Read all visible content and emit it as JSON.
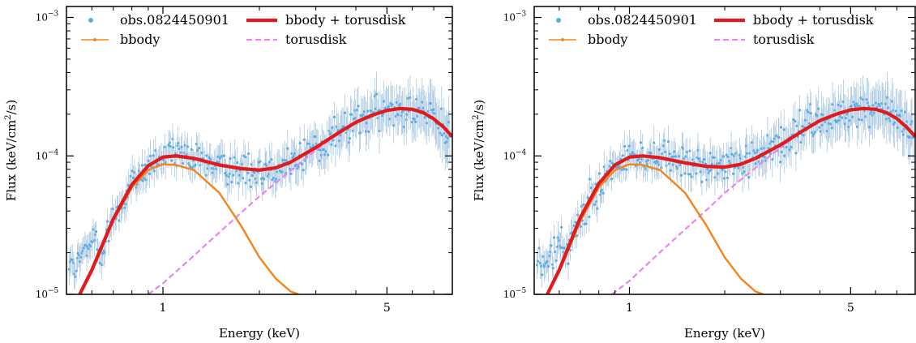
{
  "chart_data": [
    {
      "type": "scatter",
      "xlabel": "Energy (keV)",
      "ylabel_main": "Flux (keV/cm",
      "ylabel_sup": "2",
      "ylabel_end": "/s)",
      "xscale": "log",
      "yscale": "log",
      "xlim": [
        0.5,
        8.0
      ],
      "ylim": [
        1e-05,
        0.0012
      ],
      "x_ticks": [
        {
          "value": 1,
          "label": "1"
        },
        {
          "value": 5,
          "label": "5"
        }
      ],
      "y_ticks": [
        {
          "value": 1e-05,
          "base": "10",
          "exp": "−5"
        },
        {
          "value": 0.0001,
          "base": "10",
          "exp": "−4"
        },
        {
          "value": 0.001,
          "base": "10",
          "exp": "−3"
        }
      ],
      "legend_position": "top",
      "legend": [
        {
          "label": "obs.0824450901",
          "kind": "points",
          "color": "#5DADE2"
        },
        {
          "label": "bbody + torusdisk",
          "kind": "thick-line",
          "color": "#E31A1C"
        },
        {
          "label": "bbody",
          "kind": "line-marker",
          "color": "#F58518"
        },
        {
          "label": "torusdisk",
          "kind": "dashed-line",
          "color": "#EE82EE"
        }
      ],
      "series": [
        {
          "name": "bbody + torusdisk",
          "color": "#E31A1C",
          "x": [
            0.55,
            0.6,
            0.7,
            0.8,
            0.9,
            1.0,
            1.1,
            1.25,
            1.5,
            1.75,
            2.0,
            2.25,
            2.5,
            3.0,
            3.5,
            4.0,
            4.5,
            5.0,
            5.5,
            6.0,
            6.5,
            7.0,
            7.5,
            8.0
          ],
          "y": [
            1e-05,
            1.5e-05,
            3.5e-05,
            6.2e-05,
            8.5e-05,
            9.8e-05,
            0.0001,
            9.6e-05,
            8.6e-05,
            8.1e-05,
            7.9e-05,
            8.2e-05,
            9e-05,
            0.000115,
            0.000145,
            0.000175,
            0.000197,
            0.000213,
            0.00022,
            0.000217,
            0.000205,
            0.000185,
            0.000162,
            0.000138
          ]
        },
        {
          "name": "bbody",
          "color": "#F58518",
          "x": [
            0.55,
            0.6,
            0.7,
            0.8,
            0.9,
            1.0,
            1.1,
            1.25,
            1.5,
            1.75,
            2.0,
            2.25,
            2.5,
            2.65
          ],
          "y": [
            1e-05,
            1.45e-05,
            3.4e-05,
            5.9e-05,
            7.9e-05,
            8.7e-05,
            8.6e-05,
            7.9e-05,
            5.4e-05,
            3.15e-05,
            1.85e-05,
            1.3e-05,
            1.05e-05,
            1e-05
          ]
        },
        {
          "name": "torusdisk",
          "color": "#EE82EE",
          "x": [
            0.9,
            1.0,
            1.2,
            1.5,
            1.8,
            2.0,
            2.5,
            3.0,
            3.5,
            4.0,
            4.5,
            5.0
          ],
          "y": [
            1e-05,
            1.2e-05,
            1.75e-05,
            2.8e-05,
            4.1e-05,
            5.1e-05,
            7.8e-05,
            0.00011,
            0.000142,
            0.000172,
            0.000195,
            0.00021
          ]
        },
        {
          "name": "obs.0824450901",
          "color": "#5DADE2",
          "x_range": [
            0.51,
            7.9
          ],
          "count": 400
        }
      ]
    },
    {
      "type": "scatter",
      "xlabel": "Energy (keV)",
      "ylabel_main": "Flux (keV/cm",
      "ylabel_sup": "2",
      "ylabel_end": "/s)",
      "xscale": "log",
      "yscale": "log",
      "xlim": [
        0.5,
        8.0
      ],
      "ylim": [
        1e-05,
        0.0012
      ],
      "x_ticks": [
        {
          "value": 1,
          "label": "1"
        },
        {
          "value": 5,
          "label": "5"
        }
      ],
      "y_ticks": [
        {
          "value": 1e-05,
          "base": "10",
          "exp": "−5"
        },
        {
          "value": 0.0001,
          "base": "10",
          "exp": "−4"
        },
        {
          "value": 0.001,
          "base": "10",
          "exp": "−3"
        }
      ],
      "legend_position": "top",
      "legend": [
        {
          "label": "obs.0824450901",
          "kind": "points",
          "color": "#5DADE2"
        },
        {
          "label": "bbody + torusdisk",
          "kind": "thick-line",
          "color": "#E31A1C"
        },
        {
          "label": "bbody",
          "kind": "line-marker",
          "color": "#F58518"
        },
        {
          "label": "torusdisk",
          "kind": "dashed-line",
          "color": "#EE82EE"
        }
      ],
      "series": [
        {
          "name": "bbody + torusdisk",
          "color": "#E31A1C",
          "x": [
            0.55,
            0.6,
            0.7,
            0.8,
            0.9,
            1.0,
            1.1,
            1.25,
            1.5,
            1.75,
            2.0,
            2.25,
            2.5,
            3.0,
            3.5,
            4.0,
            4.5,
            5.0,
            5.5,
            6.0,
            6.5,
            7.0,
            7.5,
            8.0
          ],
          "y": [
            1e-05,
            1.5e-05,
            3.6e-05,
            6.3e-05,
            8.6e-05,
            9.8e-05,
            0.0001,
            9.7e-05,
            8.9e-05,
            8.4e-05,
            8.3e-05,
            8.7e-05,
            9.6e-05,
            0.00012,
            0.00015,
            0.00018,
            0.0002,
            0.000215,
            0.00022,
            0.000217,
            0.000205,
            0.000186,
            0.000162,
            0.000138
          ]
        },
        {
          "name": "bbody",
          "color": "#F58518",
          "x": [
            0.55,
            0.6,
            0.7,
            0.8,
            0.9,
            1.0,
            1.1,
            1.25,
            1.5,
            1.75,
            2.0,
            2.25,
            2.5,
            2.65
          ],
          "y": [
            1e-05,
            1.45e-05,
            3.4e-05,
            5.9e-05,
            7.9e-05,
            8.7e-05,
            8.6e-05,
            7.9e-05,
            5.4e-05,
            3.15e-05,
            1.85e-05,
            1.3e-05,
            1.05e-05,
            1e-05
          ]
        },
        {
          "name": "torusdisk",
          "color": "#EE82EE",
          "x": [
            0.88,
            1.0,
            1.2,
            1.5,
            1.8,
            2.0,
            2.5,
            3.0,
            3.5,
            4.0,
            4.5,
            5.0
          ],
          "y": [
            1e-05,
            1.25e-05,
            1.85e-05,
            2.95e-05,
            4.3e-05,
            5.4e-05,
            8.2e-05,
            0.000115,
            0.000148,
            0.000178,
            0.0002,
            0.000215
          ]
        },
        {
          "name": "obs.0824450901",
          "color": "#5DADE2",
          "x_range": [
            0.51,
            7.9
          ],
          "count": 400
        }
      ]
    }
  ]
}
